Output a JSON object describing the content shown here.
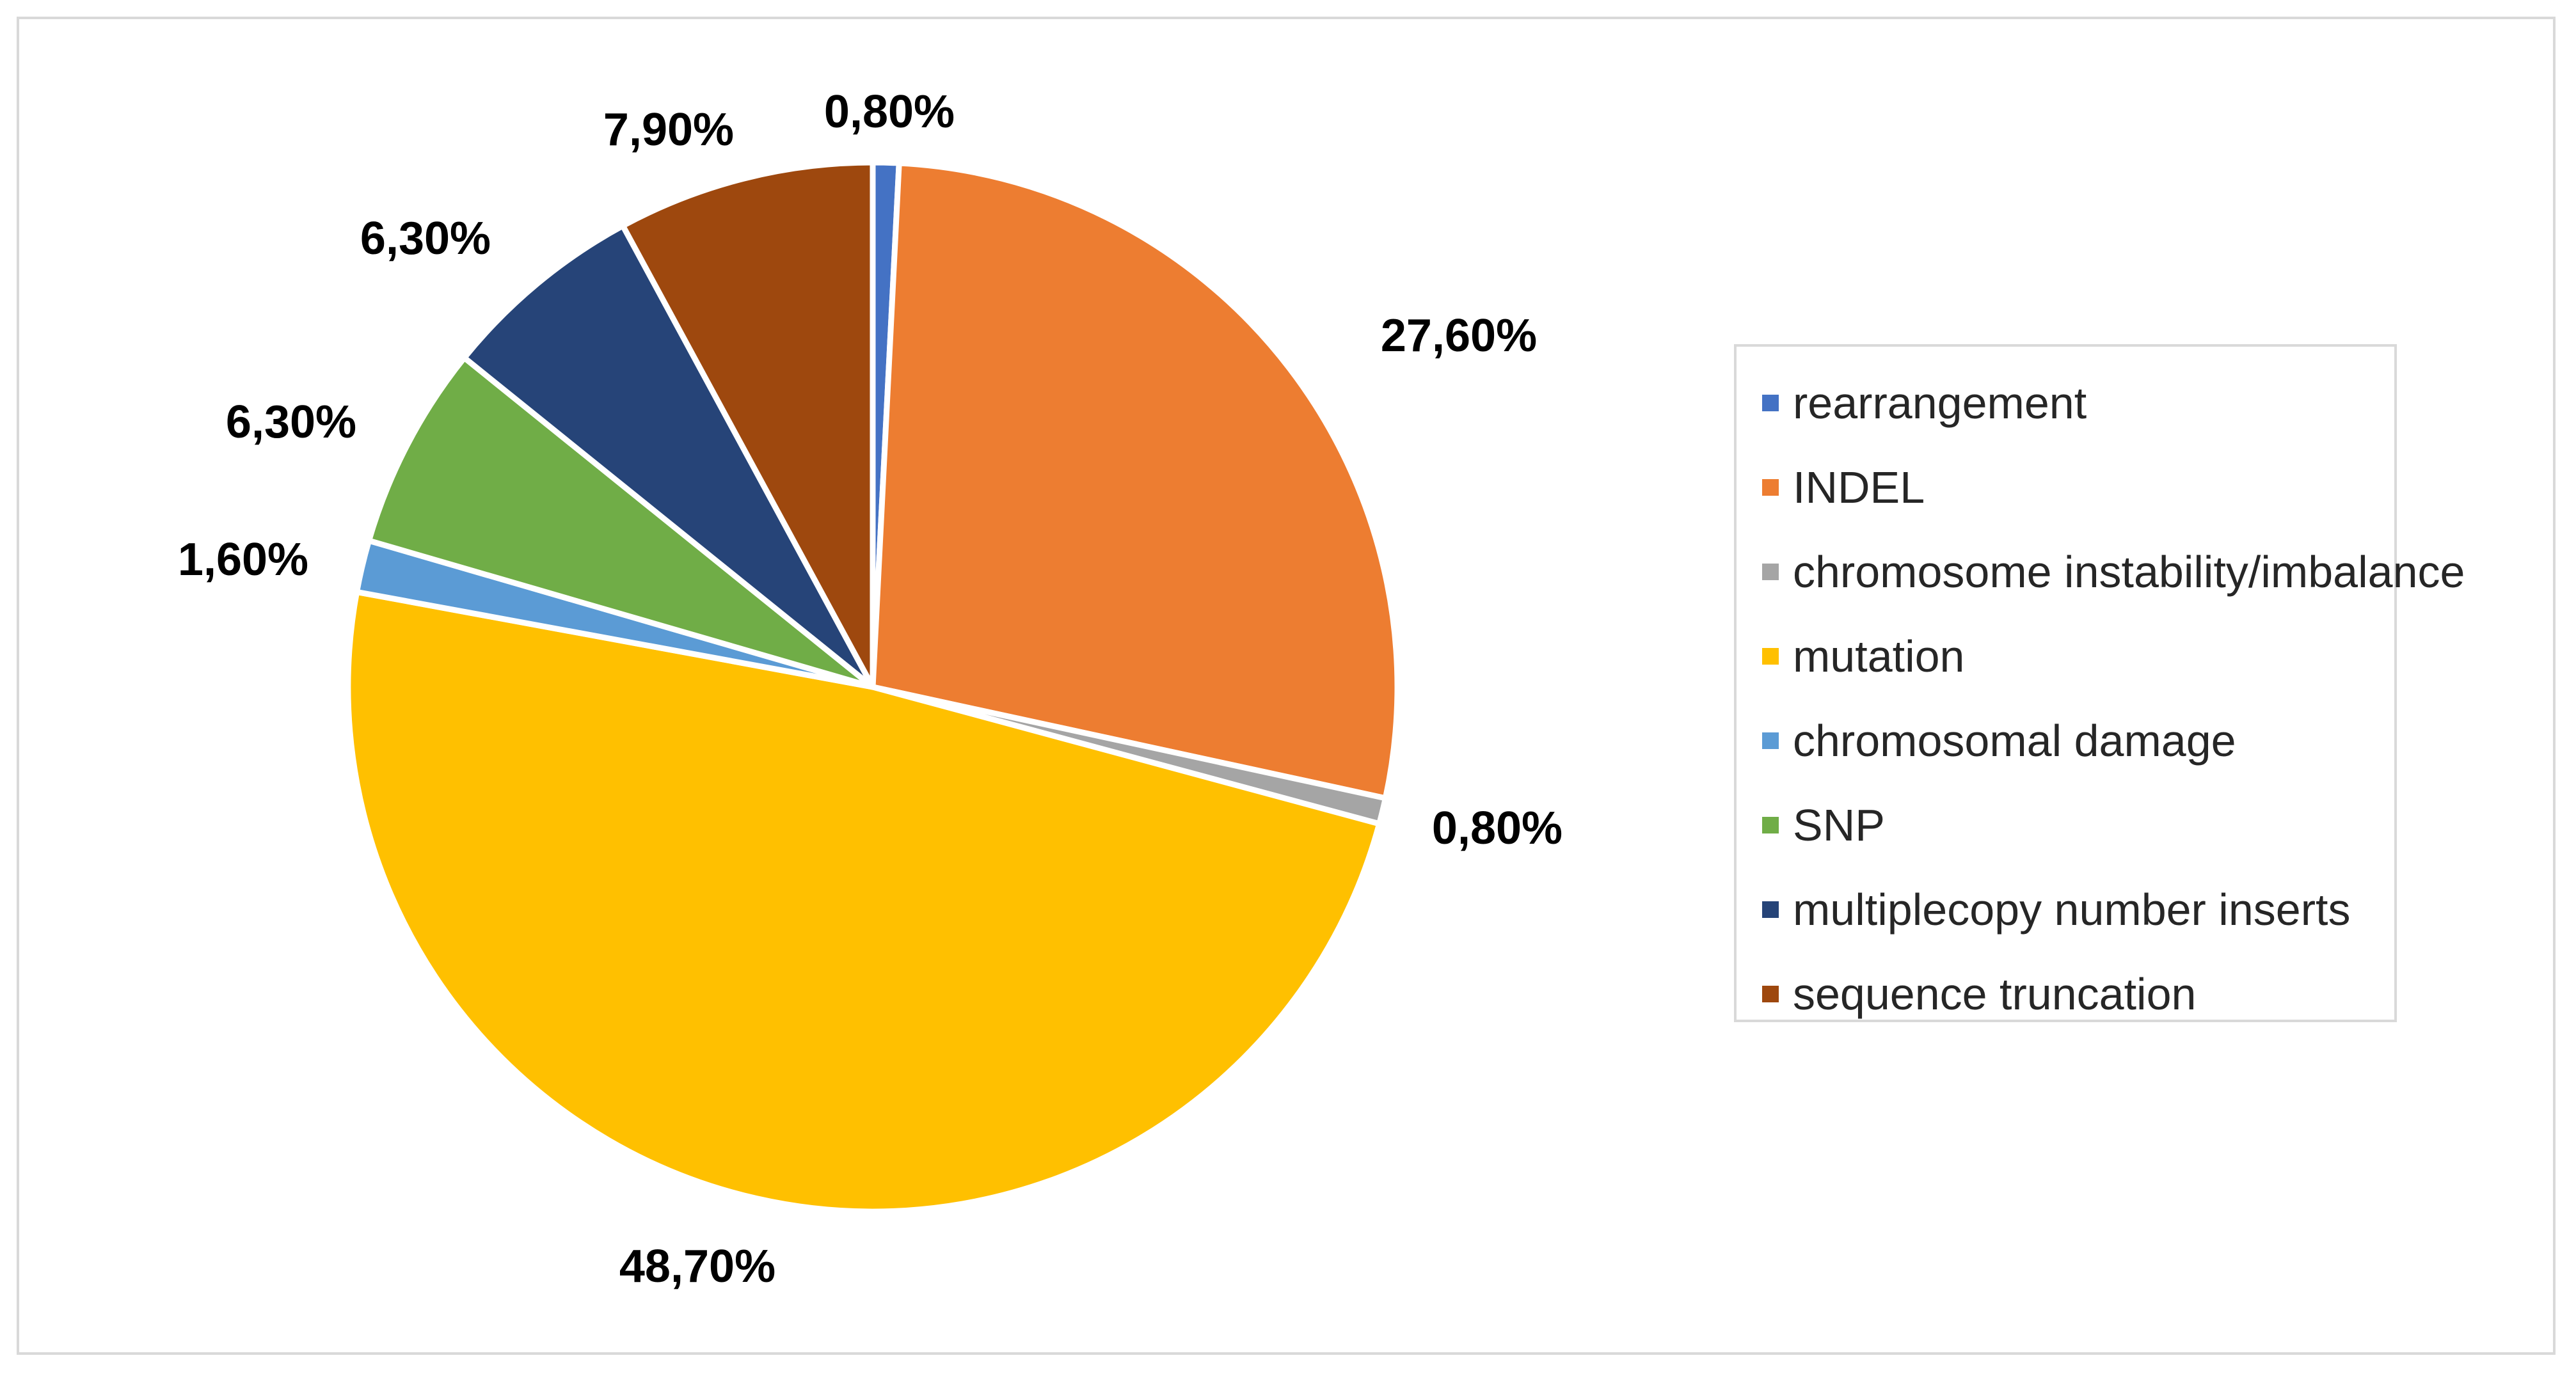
{
  "chart_data": {
    "type": "pie",
    "title": "",
    "slices": [
      {
        "name": "rearrangement",
        "value": 0.8,
        "label": "0,80%",
        "color": "#4472C4"
      },
      {
        "name": "INDEL",
        "value": 27.6,
        "label": "27,60%",
        "color": "#ED7D31"
      },
      {
        "name": "chromosome instability/imbalance",
        "value": 0.8,
        "label": "0,80%",
        "color": "#A5A5A5"
      },
      {
        "name": "mutation",
        "value": 48.7,
        "label": "48,70%",
        "color": "#FFC000"
      },
      {
        "name": "chromosomal damage",
        "value": 1.6,
        "label": "1,60%",
        "color": "#5B9BD5"
      },
      {
        "name": "SNP",
        "value": 6.3,
        "label": "6,30%",
        "color": "#70AD47"
      },
      {
        "name": "multiplecopy number inserts",
        "value": 6.3,
        "label": "6,30%",
        "color": "#264478"
      },
      {
        "name": "sequence truncation",
        "value": 7.9,
        "label": "7,90%",
        "color": "#9E480E"
      }
    ],
    "legend_position": "right",
    "slice_border_color": "#FFFFFF"
  }
}
